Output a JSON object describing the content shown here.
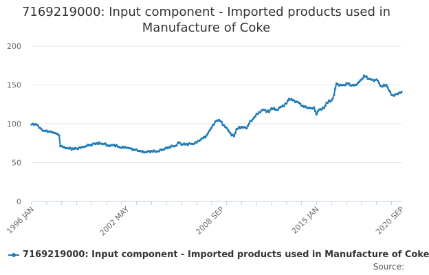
{
  "chart_data": {
    "type": "line",
    "title_lines": [
      "7169219000: Input component - Imported products used in",
      "Manufacture of Coke"
    ],
    "xlabel": "",
    "ylabel": "",
    "ylim": [
      0,
      200
    ],
    "yticks": [
      0,
      50,
      100,
      150,
      200
    ],
    "x_ticks": [
      "1996 JAN",
      "2002 MAY",
      "2008 SEP",
      "2015 JAN",
      "2020 SEP"
    ],
    "x_tick_index": [
      0,
      76,
      152,
      228,
      296
    ],
    "legend": "7169219000: Input component - Imported products used in Manufacture of Coke",
    "source_label": "Source:",
    "color": "#1f7bb6",
    "series": [
      {
        "name": "7169219000: Input component - Imported products used in Manufacture of Coke",
        "start": "1996-01",
        "frequency": "monthly",
        "anchors": [
          [
            0,
            99
          ],
          [
            4,
            99
          ],
          [
            6,
            95
          ],
          [
            10,
            91
          ],
          [
            14,
            90
          ],
          [
            18,
            88
          ],
          [
            20,
            87
          ],
          [
            22,
            85
          ],
          [
            23,
            71
          ],
          [
            26,
            70
          ],
          [
            30,
            68
          ],
          [
            36,
            68
          ],
          [
            40,
            70
          ],
          [
            46,
            72
          ],
          [
            52,
            75
          ],
          [
            58,
            74
          ],
          [
            62,
            71
          ],
          [
            66,
            73
          ],
          [
            70,
            70
          ],
          [
            76,
            69
          ],
          [
            82,
            67
          ],
          [
            86,
            65
          ],
          [
            90,
            63
          ],
          [
            96,
            65
          ],
          [
            100,
            64
          ],
          [
            104,
            66
          ],
          [
            110,
            70
          ],
          [
            116,
            72
          ],
          [
            118,
            76
          ],
          [
            120,
            73
          ],
          [
            124,
            74
          ],
          [
            130,
            74
          ],
          [
            134,
            78
          ],
          [
            140,
            85
          ],
          [
            144,
            95
          ],
          [
            148,
            104
          ],
          [
            150,
            105
          ],
          [
            154,
            98
          ],
          [
            158,
            90
          ],
          [
            160,
            85
          ],
          [
            162,
            84
          ],
          [
            164,
            93
          ],
          [
            168,
            96
          ],
          [
            172,
            94
          ],
          [
            174,
            100
          ],
          [
            178,
            108
          ],
          [
            182,
            115
          ],
          [
            186,
            118
          ],
          [
            190,
            115
          ],
          [
            192,
            120
          ],
          [
            196,
            118
          ],
          [
            200,
            122
          ],
          [
            204,
            126
          ],
          [
            206,
            132
          ],
          [
            210,
            130
          ],
          [
            214,
            127
          ],
          [
            216,
            123
          ],
          [
            220,
            121
          ],
          [
            224,
            120
          ],
          [
            226,
            121
          ],
          [
            228,
            112
          ],
          [
            230,
            118
          ],
          [
            234,
            120
          ],
          [
            236,
            127
          ],
          [
            240,
            130
          ],
          [
            242,
            137
          ],
          [
            244,
            152
          ],
          [
            246,
            149
          ],
          [
            250,
            150
          ],
          [
            254,
            152
          ],
          [
            256,
            149
          ],
          [
            260,
            150
          ],
          [
            264,
            157
          ],
          [
            266,
            162
          ],
          [
            270,
            158
          ],
          [
            274,
            155
          ],
          [
            276,
            157
          ],
          [
            280,
            148
          ],
          [
            284,
            150
          ],
          [
            286,
            143
          ],
          [
            288,
            137
          ],
          [
            290,
            136
          ],
          [
            294,
            140
          ],
          [
            296,
            141
          ]
        ]
      }
    ]
  }
}
